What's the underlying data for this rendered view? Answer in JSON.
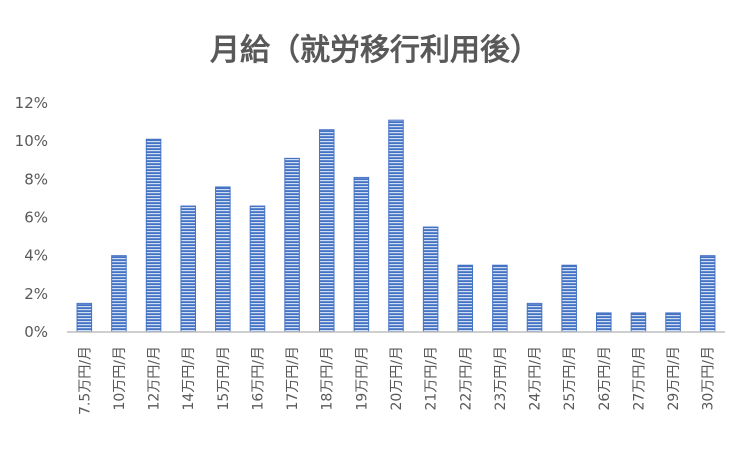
{
  "chart_data": {
    "type": "bar",
    "title": "月給（就労移行利用後）",
    "xlabel": "",
    "ylabel": "",
    "categories": [
      "7.5万円/月",
      "10万円/月",
      "12万円/月",
      "14万円/月",
      "15万円/月",
      "16万円/月",
      "17万円/月",
      "18万円/月",
      "19万円/月",
      "20万円/月",
      "21万円/月",
      "22万円/月",
      "23万円/月",
      "24万円/月",
      "25万円/月",
      "26万円/月",
      "27万円/月",
      "29万円/月",
      "30万円/月"
    ],
    "values": [
      1.5,
      4.0,
      10.1,
      6.6,
      7.6,
      6.6,
      9.1,
      10.6,
      8.1,
      11.1,
      5.5,
      3.5,
      3.5,
      1.5,
      3.5,
      1.0,
      1.0,
      1.0,
      4.0
    ],
    "ylim": [
      0,
      12
    ],
    "yticks": [
      "0%",
      "2%",
      "4%",
      "6%",
      "8%",
      "10%",
      "12%"
    ],
    "grid": false,
    "legend": "none",
    "bar_color": "#4472C4",
    "bar_stripe_color": "#ffffff"
  }
}
